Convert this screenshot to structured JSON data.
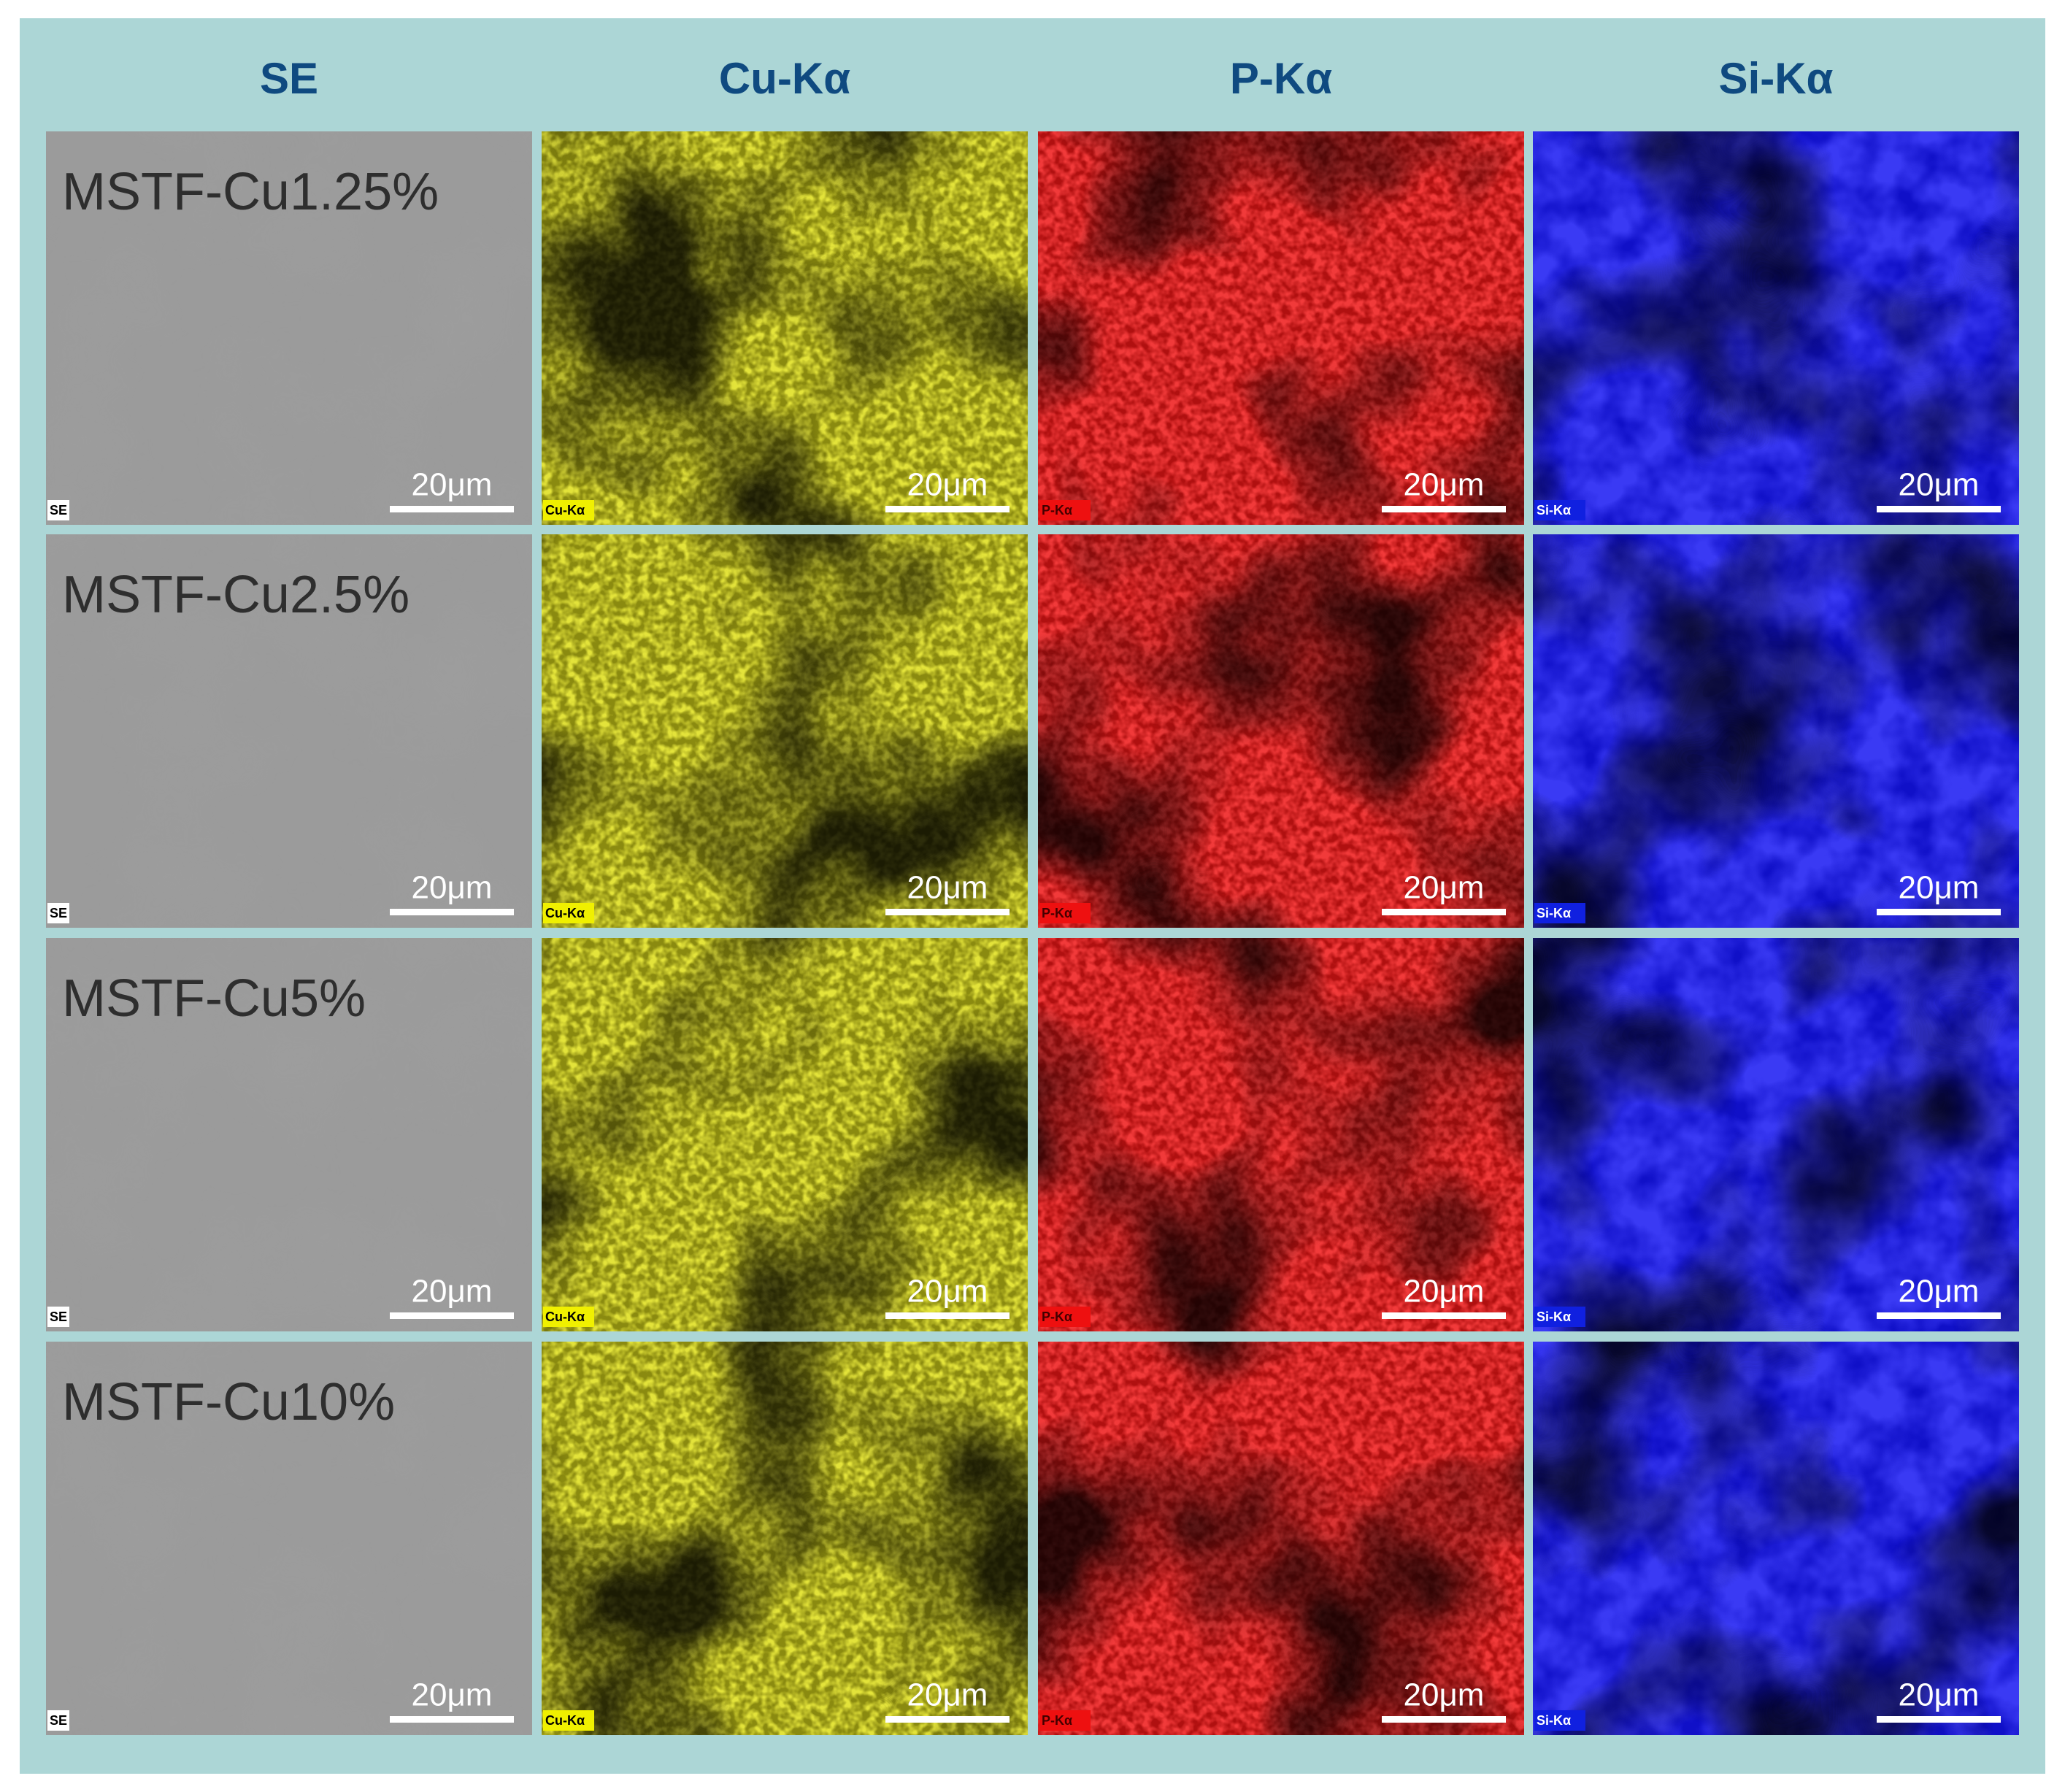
{
  "header": {
    "columns": [
      {
        "title": "SE",
        "tag": "SE"
      },
      {
        "title": "Cu-Kα",
        "tag": "Cu-Kα"
      },
      {
        "title": "P-Kα",
        "tag": "P-Kα"
      },
      {
        "title": "Si-Kα",
        "tag": "Si-Kα"
      }
    ]
  },
  "rows": [
    {
      "label": "MSTF-Cu1.25%"
    },
    {
      "label": "MSTF-Cu2.5%"
    },
    {
      "label": "MSTF-Cu5%"
    },
    {
      "label": "MSTF-Cu10%"
    }
  ],
  "scale_bar": "20μm"
}
